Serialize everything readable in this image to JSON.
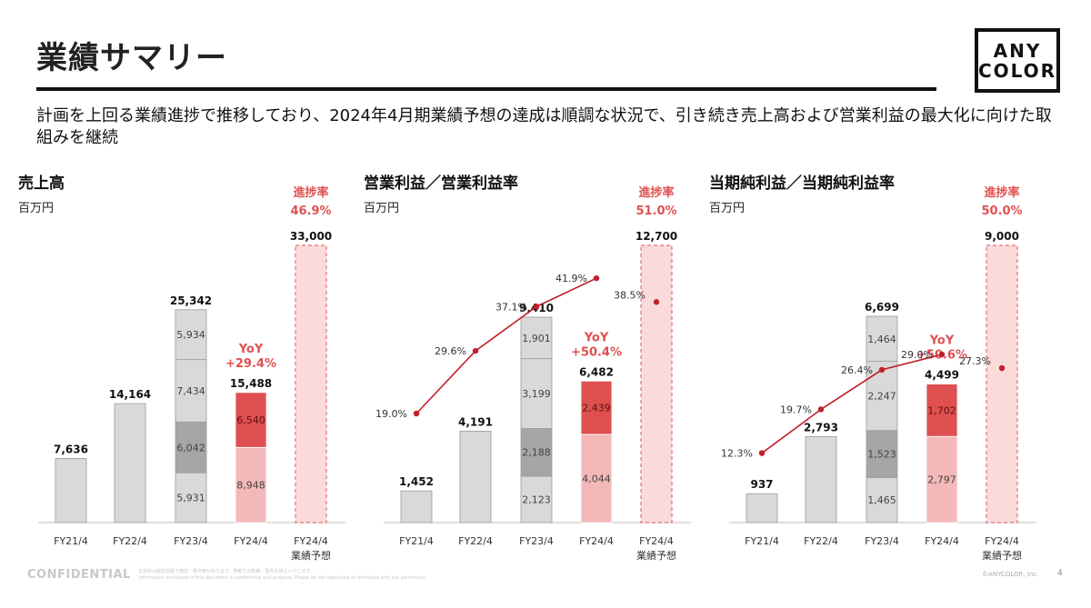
{
  "header": {
    "title": "業績サマリー",
    "summary": "計画を上回る業績進捗で推移しており、2024年4月期業績予想の達成は順調な状況で、引き続き売上高および営業利益の最大化に向けた取組みを継続"
  },
  "logo": {
    "line1": "ANY",
    "line2": "COLOR"
  },
  "footer": {
    "confidential": "CONFIDENTIAL",
    "note_line1": "本資料は秘密情報で機密・著作権があります。無断での転載・配布を禁止いたします。",
    "note_line2": "Information contained in this document is confidential and property. Please do not reproduce or distribute with our permission.",
    "copyright": "©ANYCOLOR, Inc.",
    "page": "4"
  },
  "colors": {
    "past_bar": "#d9d9d9",
    "quarter_light": "#d9d9d9",
    "quarter_dark": "#a6a6a6",
    "fy24_h1": "#f4b8b8",
    "fy24_h2": "#e05050",
    "forecast": "#fbdada",
    "forecast_border": "#e07070",
    "accent": "#e05050",
    "margin_line": "#c0202a"
  },
  "chart_data": [
    {
      "type": "bar",
      "title": "売上高",
      "unit": "百万円",
      "progress_label": "進捗率",
      "progress_value": "46.9%",
      "yoy_label": "YoY",
      "yoy_value": "+29.4%",
      "categories": [
        "FY21/4",
        "FY22/4",
        "FY23/4",
        "FY24/4",
        "FY24/4"
      ],
      "category_sublabels": [
        "",
        "",
        "",
        "",
        "業績予想"
      ],
      "totals": [
        7636,
        14164,
        25342,
        15488,
        33000
      ],
      "segments": [
        [],
        [],
        [
          5931,
          6042,
          7434,
          5934
        ],
        [
          8948,
          6540
        ],
        []
      ],
      "ylim": [
        0,
        33000
      ]
    },
    {
      "type": "bar",
      "title": "営業利益／営業利益率",
      "unit": "百万円",
      "progress_label": "進捗率",
      "progress_value": "51.0%",
      "yoy_label": "YoY",
      "yoy_value": "+50.4%",
      "categories": [
        "FY21/4",
        "FY22/4",
        "FY23/4",
        "FY24/4",
        "FY24/4"
      ],
      "category_sublabels": [
        "",
        "",
        "",
        "",
        "業績予想"
      ],
      "totals": [
        1452,
        4191,
        9410,
        6482,
        12700
      ],
      "segments": [
        [],
        [],
        [
          2123,
          2188,
          3199,
          1901
        ],
        [
          4044,
          2439
        ],
        []
      ],
      "margin": [
        19.0,
        29.6,
        37.1,
        41.9
      ],
      "forecast_margin": 38.5,
      "ylim": [
        0,
        12700
      ]
    },
    {
      "type": "bar",
      "title": "当期純利益／当期純利益率",
      "unit": "百万円",
      "progress_label": "進捗率",
      "progress_value": "50.0%",
      "yoy_label": "YoY",
      "yoy_value": "+50.6%",
      "categories": [
        "FY21/4",
        "FY22/4",
        "FY23/4",
        "FY24/4",
        "FY24/4"
      ],
      "category_sublabels": [
        "",
        "",
        "",
        "",
        "業績予想"
      ],
      "totals": [
        937,
        2793,
        6699,
        4499,
        9000
      ],
      "segments": [
        [],
        [],
        [
          1465,
          1523,
          2247,
          1464
        ],
        [
          2797,
          1702
        ],
        []
      ],
      "margin": [
        12.3,
        19.7,
        26.4,
        29.0
      ],
      "forecast_margin": 27.3,
      "ylim": [
        0,
        9000
      ]
    }
  ]
}
